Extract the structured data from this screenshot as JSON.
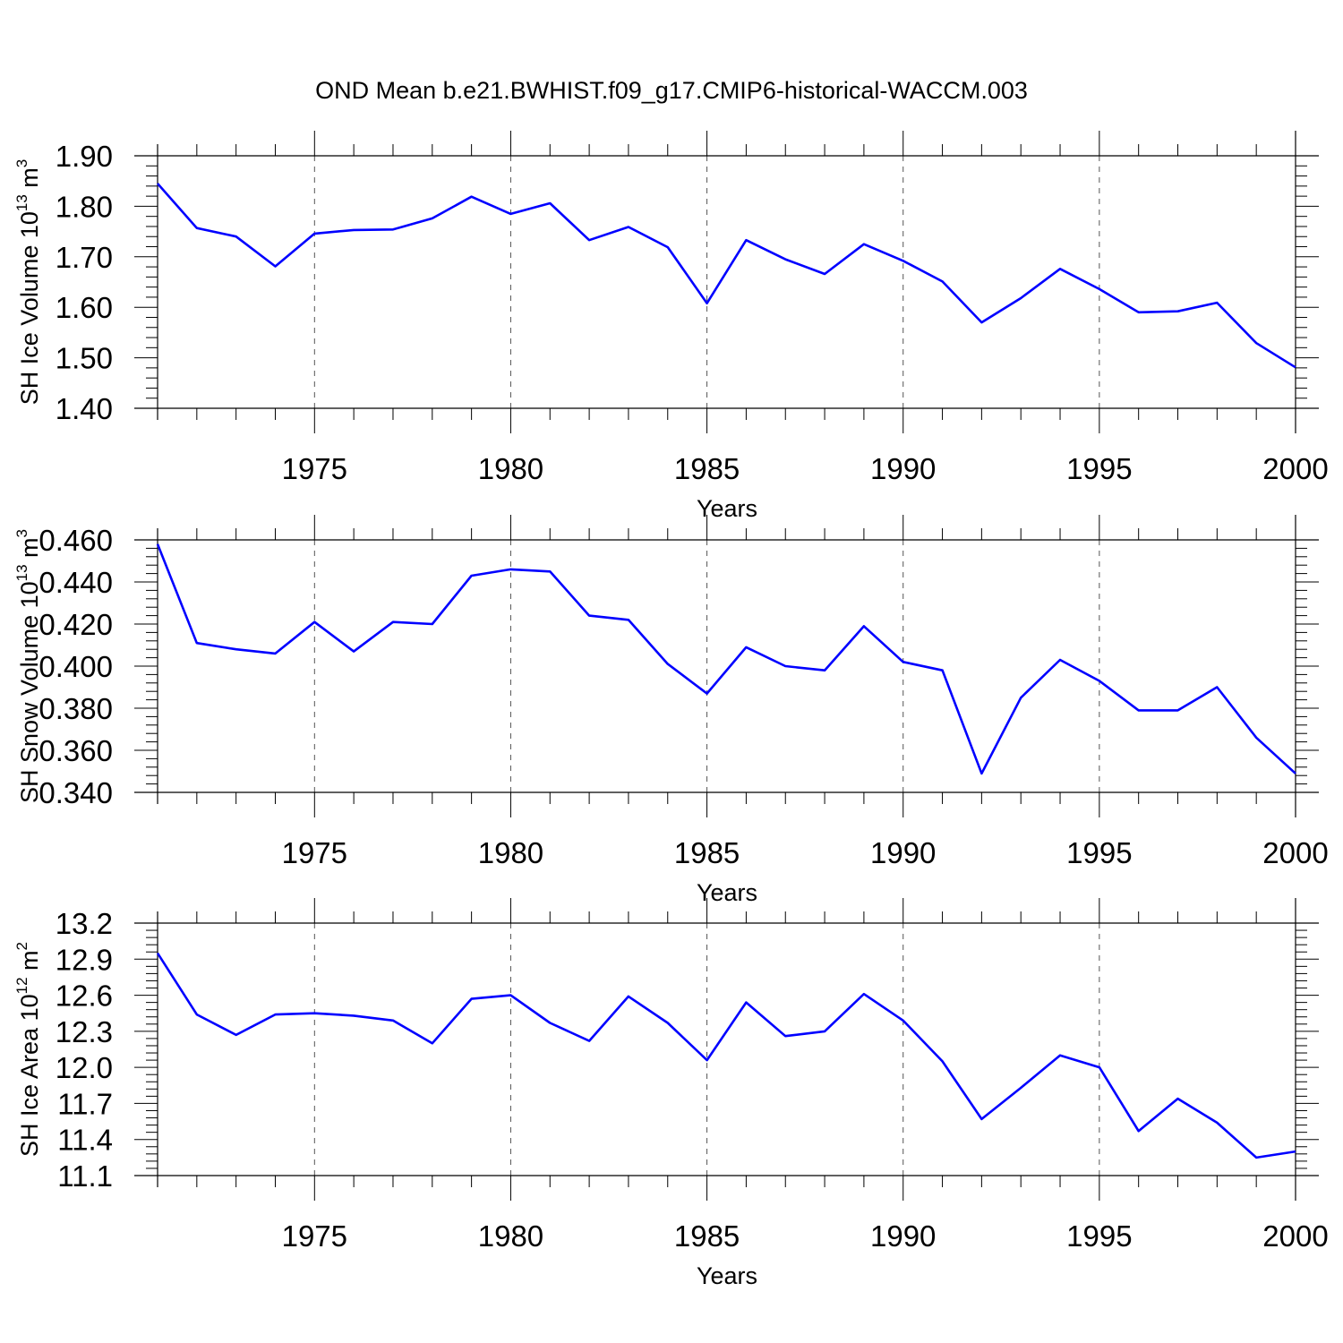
{
  "title": "OND Mean b.e21.BWHIST.f09_g17.CMIP6-historical-WACCM.003",
  "colors": {
    "line": "#0000ff",
    "axis": "#000000",
    "grid": "#555555"
  },
  "chart_data": [
    {
      "type": "line",
      "xlabel": "Years",
      "ylabel": {
        "text": "SH Ice Volume 10",
        "exponent": "13",
        "unit": " m",
        "unit_exponent": "3"
      },
      "xlim": [
        1971,
        2000
      ],
      "ylim": [
        1.4,
        1.9
      ],
      "xticks": [
        "1975",
        "1980",
        "1985",
        "1990",
        "1995",
        "2000"
      ],
      "yticks": [
        "1.40",
        "1.50",
        "1.60",
        "1.70",
        "1.80",
        "1.90"
      ],
      "grid_x": [
        1975,
        1980,
        1985,
        1990,
        1995
      ],
      "x": [
        1971,
        1972,
        1973,
        1974,
        1975,
        1976,
        1977,
        1978,
        1979,
        1980,
        1981,
        1982,
        1983,
        1984,
        1985,
        1986,
        1987,
        1988,
        1989,
        1990,
        1991,
        1992,
        1993,
        1994,
        1995,
        1996,
        1997,
        1998,
        1999,
        2000
      ],
      "values": [
        1.845,
        1.757,
        1.74,
        1.681,
        1.746,
        1.753,
        1.754,
        1.776,
        1.819,
        1.785,
        1.806,
        1.733,
        1.759,
        1.719,
        1.608,
        1.733,
        1.695,
        1.666,
        1.725,
        1.692,
        1.651,
        1.57,
        1.618,
        1.676,
        1.636,
        1.59,
        1.592,
        1.609,
        1.529,
        1.481
      ]
    },
    {
      "type": "line",
      "xlabel": "Years",
      "ylabel": {
        "text": "SH Snow Volume 10",
        "exponent": "13",
        "unit": " m",
        "unit_exponent": "3"
      },
      "xlim": [
        1971,
        2000
      ],
      "ylim": [
        0.34,
        0.46
      ],
      "xticks": [
        "1975",
        "1980",
        "1985",
        "1990",
        "1995",
        "2000"
      ],
      "yticks": [
        "0.340",
        "0.360",
        "0.380",
        "0.400",
        "0.420",
        "0.440",
        "0.460"
      ],
      "grid_x": [
        1975,
        1980,
        1985,
        1990,
        1995
      ],
      "x": [
        1971,
        1972,
        1973,
        1974,
        1975,
        1976,
        1977,
        1978,
        1979,
        1980,
        1981,
        1982,
        1983,
        1984,
        1985,
        1986,
        1987,
        1988,
        1989,
        1990,
        1991,
        1992,
        1993,
        1994,
        1995,
        1996,
        1997,
        1998,
        1999,
        2000
      ],
      "values": [
        0.458,
        0.411,
        0.408,
        0.406,
        0.421,
        0.407,
        0.421,
        0.42,
        0.443,
        0.446,
        0.445,
        0.424,
        0.422,
        0.401,
        0.387,
        0.409,
        0.4,
        0.398,
        0.419,
        0.402,
        0.398,
        0.349,
        0.385,
        0.403,
        0.393,
        0.379,
        0.379,
        0.39,
        0.366,
        0.349
      ]
    },
    {
      "type": "line",
      "xlabel": "Years",
      "ylabel": {
        "text": "SH Ice Area 10",
        "exponent": "12",
        "unit": " m",
        "unit_exponent": "2"
      },
      "xlim": [
        1971,
        2000
      ],
      "ylim": [
        11.1,
        13.2
      ],
      "xticks": [
        "1975",
        "1980",
        "1985",
        "1990",
        "1995",
        "2000"
      ],
      "yticks": [
        "11.1",
        "11.4",
        "11.7",
        "12.0",
        "12.3",
        "12.6",
        "12.9",
        "13.2"
      ],
      "grid_x": [
        1975,
        1980,
        1985,
        1990,
        1995
      ],
      "x": [
        1971,
        1972,
        1973,
        1974,
        1975,
        1976,
        1977,
        1978,
        1979,
        1980,
        1981,
        1982,
        1983,
        1984,
        1985,
        1986,
        1987,
        1988,
        1989,
        1990,
        1991,
        1992,
        1993,
        1994,
        1995,
        1996,
        1997,
        1998,
        1999,
        2000
      ],
      "values": [
        12.95,
        12.44,
        12.27,
        12.44,
        12.45,
        12.43,
        12.39,
        12.2,
        12.57,
        12.6,
        12.37,
        12.22,
        12.59,
        12.37,
        12.06,
        12.54,
        12.26,
        12.3,
        12.61,
        12.39,
        12.05,
        11.57,
        11.83,
        12.1,
        12.0,
        11.47,
        11.74,
        11.54,
        11.25,
        11.3
      ]
    }
  ]
}
